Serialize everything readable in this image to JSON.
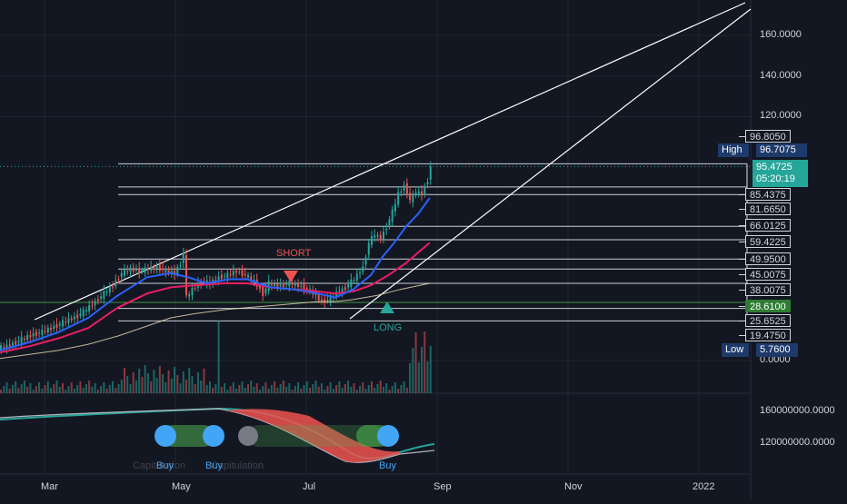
{
  "chart_data": {
    "type": "candlestick",
    "price_axis": {
      "ylim": [
        -2,
        178
      ],
      "ticks": [
        {
          "value": 160,
          "label": "160.0000"
        },
        {
          "value": 140,
          "label": "140.0000"
        },
        {
          "value": 120,
          "label": "120.0000"
        },
        {
          "value": 0,
          "label": "0.0000"
        }
      ]
    },
    "price_levels": [
      {
        "value": 96.805,
        "label": "96.8050"
      },
      {
        "value": 85.4375,
        "label": "85.4375"
      },
      {
        "value": 81.665,
        "label": "81.6650"
      },
      {
        "value": 66.0125,
        "label": "66.0125"
      },
      {
        "value": 59.4225,
        "label": "59.4225"
      },
      {
        "value": 49.95,
        "label": "49.9500"
      },
      {
        "value": 45.0075,
        "label": "45.0075"
      },
      {
        "value": 38.0075,
        "label": "38.0075"
      },
      {
        "value": 28.61,
        "label": "28.6100"
      },
      {
        "value": 25.6525,
        "label": "25.6525"
      },
      {
        "value": 19.475,
        "label": "19.4750"
      }
    ],
    "high": {
      "label": "High",
      "value": "96.7075"
    },
    "low": {
      "label": "Low",
      "value": "5.7600"
    },
    "last_price": {
      "value": "95.4725",
      "countdown": "05:20:19"
    },
    "volume_axis": {
      "ticks": [
        "160000000.0000",
        "120000000.0000"
      ]
    },
    "x_axis": {
      "ticks": [
        "Mar",
        "May",
        "Jul",
        "Sep",
        "Nov",
        "2022"
      ]
    },
    "markers": [
      {
        "type": "short",
        "label": "SHORT",
        "color": "#ef5350"
      },
      {
        "type": "long",
        "label": "LONG",
        "color": "#26a69a"
      }
    ],
    "signals": [
      {
        "label": "Buy"
      },
      {
        "label": "Buy"
      },
      {
        "label": "Buy"
      }
    ],
    "signal_faint_text": [
      "Capitulation",
      "Capitulation"
    ],
    "price_path": [
      [
        0,
        6
      ],
      [
        3,
        7
      ],
      [
        6,
        9
      ],
      [
        9,
        11
      ],
      [
        12,
        13
      ],
      [
        15,
        14
      ],
      [
        18,
        16
      ],
      [
        21,
        18
      ],
      [
        24,
        20
      ],
      [
        27,
        22
      ],
      [
        30,
        25
      ],
      [
        33,
        29
      ],
      [
        36,
        33
      ],
      [
        39,
        37
      ],
      [
        42,
        43
      ],
      [
        45,
        45
      ],
      [
        48,
        44
      ],
      [
        51,
        45
      ],
      [
        54,
        46
      ],
      [
        57,
        44
      ],
      [
        60,
        43
      ],
      [
        62,
        48
      ],
      [
        63,
        53
      ],
      [
        64,
        31
      ],
      [
        66,
        35
      ],
      [
        69,
        39
      ],
      [
        72,
        38
      ],
      [
        75,
        41
      ],
      [
        78,
        42
      ],
      [
        81,
        44
      ],
      [
        84,
        42
      ],
      [
        87,
        39
      ],
      [
        90,
        33
      ],
      [
        92,
        38
      ],
      [
        94,
        37
      ],
      [
        96,
        37
      ],
      [
        99,
        38
      ],
      [
        102,
        37
      ],
      [
        105,
        35
      ],
      [
        108,
        32
      ],
      [
        110,
        29
      ],
      [
        112,
        30
      ],
      [
        115,
        33
      ],
      [
        118,
        36
      ],
      [
        121,
        40
      ],
      [
        124,
        46
      ],
      [
        126,
        58
      ],
      [
        128,
        62
      ],
      [
        130,
        60
      ],
      [
        132,
        66
      ],
      [
        134,
        73
      ],
      [
        136,
        82
      ],
      [
        138,
        86
      ],
      [
        140,
        79
      ],
      [
        142,
        83
      ],
      [
        144,
        82
      ],
      [
        146,
        89
      ],
      [
        147,
        95.47
      ]
    ],
    "ema_fast": [
      [
        0,
        5
      ],
      [
        10,
        9
      ],
      [
        20,
        14
      ],
      [
        30,
        21
      ],
      [
        40,
        32
      ],
      [
        50,
        41
      ],
      [
        58,
        43
      ],
      [
        64,
        41
      ],
      [
        70,
        38
      ],
      [
        78,
        40
      ],
      [
        84,
        40
      ],
      [
        92,
        36
      ],
      [
        100,
        35
      ],
      [
        108,
        33
      ],
      [
        114,
        31
      ],
      [
        120,
        35
      ],
      [
        126,
        42
      ],
      [
        130,
        51
      ],
      [
        134,
        58
      ],
      [
        138,
        66
      ],
      [
        142,
        72
      ],
      [
        146,
        80
      ]
    ],
    "ema_slow": [
      [
        0,
        4
      ],
      [
        10,
        7
      ],
      [
        20,
        11
      ],
      [
        30,
        16
      ],
      [
        40,
        26
      ],
      [
        50,
        33
      ],
      [
        58,
        36
      ],
      [
        66,
        37
      ],
      [
        76,
        38
      ],
      [
        84,
        38
      ],
      [
        92,
        36
      ],
      [
        100,
        35
      ],
      [
        108,
        34
      ],
      [
        114,
        33
      ],
      [
        120,
        34
      ],
      [
        126,
        37
      ],
      [
        132,
        42
      ],
      [
        138,
        48
      ],
      [
        142,
        53
      ],
      [
        146,
        58
      ]
    ],
    "sma_long": [
      [
        0,
        1
      ],
      [
        10,
        3
      ],
      [
        20,
        5
      ],
      [
        30,
        8
      ],
      [
        40,
        12
      ],
      [
        50,
        17
      ],
      [
        58,
        21
      ],
      [
        66,
        23
      ],
      [
        76,
        25
      ],
      [
        84,
        26
      ],
      [
        92,
        27
      ],
      [
        100,
        28
      ],
      [
        108,
        29
      ],
      [
        114,
        29
      ],
      [
        120,
        30
      ],
      [
        128,
        32
      ],
      [
        136,
        35
      ],
      [
        146,
        38
      ]
    ]
  }
}
